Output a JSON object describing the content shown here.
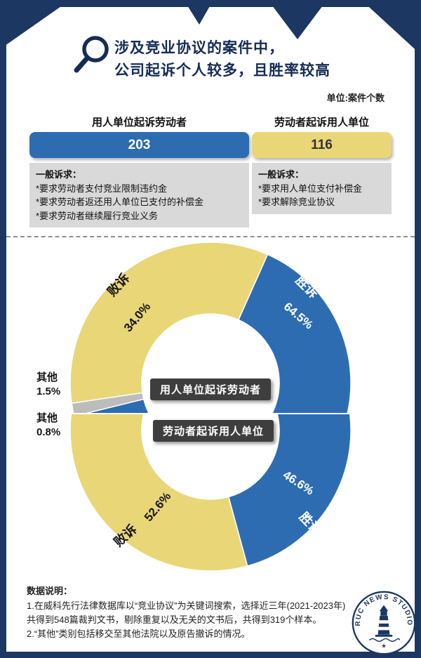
{
  "palette": {
    "navy": "#1c3761",
    "ink": "#142c56",
    "blue": "#2e6cb2",
    "yellow": "#e9d677",
    "gray_box": "#d9d9d9",
    "badge_bg": "#3e3e3e"
  },
  "header": {
    "title_line1": "涉及竞业协议的案件中，",
    "title_line2": "公司起诉个人较多，且胜率较高",
    "unit_label": "单位:案件个数"
  },
  "comparison": {
    "left": {
      "header": "用人单位起诉劳动者",
      "bar_color": "#2e6cb2",
      "demands_title": "一般诉求：",
      "demands": [
        "*要求劳动者支付竞业限制违约金",
        "*要求劳动者返还用人单位已支付的补偿金",
        "*要求劳动者继续履行竞业义务"
      ]
    },
    "right": {
      "header": "劳动者起诉用人单位",
      "bar_color": "#e9d677",
      "demands_title": "一般诉求：",
      "demands": [
        "*要求用人单位支付补偿金",
        "*要求解除竞业协议"
      ]
    }
  },
  "chart_data": [
    {
      "type": "bar",
      "title": "单位:案件个数",
      "categories": [
        "用人单位起诉劳动者",
        "劳动者起诉用人单位"
      ],
      "values": [
        203,
        116
      ],
      "colors": [
        "#2e6cb2",
        "#e9d677"
      ]
    },
    {
      "type": "pie",
      "title": "用人单位起诉劳动者",
      "categories": [
        "胜诉",
        "其他",
        "败诉"
      ],
      "values": [
        64.5,
        1.5,
        34.0
      ],
      "labels": [
        "64.5%",
        "1.5%",
        "34.0%"
      ],
      "colors": [
        "#2e6cb2",
        "#bcbcbc",
        "#e9d677"
      ],
      "rotation": 24,
      "hole": 0.49,
      "visible_portion": "top",
      "legend_position": "none"
    },
    {
      "type": "pie",
      "title": "劳动者起诉用人单位",
      "categories": [
        "胜诉",
        "败诉",
        "其他"
      ],
      "values": [
        46.6,
        52.6,
        0.8
      ],
      "labels": [
        "46.6%",
        "52.6%",
        "0.8%"
      ],
      "colors": [
        "#2e6cb2",
        "#e9d677",
        "#bcbcbc"
      ],
      "rotation": 357,
      "hole": 0.49,
      "visible_portion": "bottom",
      "legend_position": "none"
    }
  ],
  "notes": {
    "heading": "数据说明：",
    "lines": [
      "1.在威科先行法律数据库以“竞业协议”为关键词搜索，选择近三年(2021-2023年)",
      "共得到548篇裁判文书，剔除重复以及无关的文书后，共得到319个样本。",
      "2.“其他”类别包括移交至其他法院以及原告撤诉的情况。"
    ]
  },
  "logo": {
    "text": "RUC NEWS STUDIO"
  }
}
